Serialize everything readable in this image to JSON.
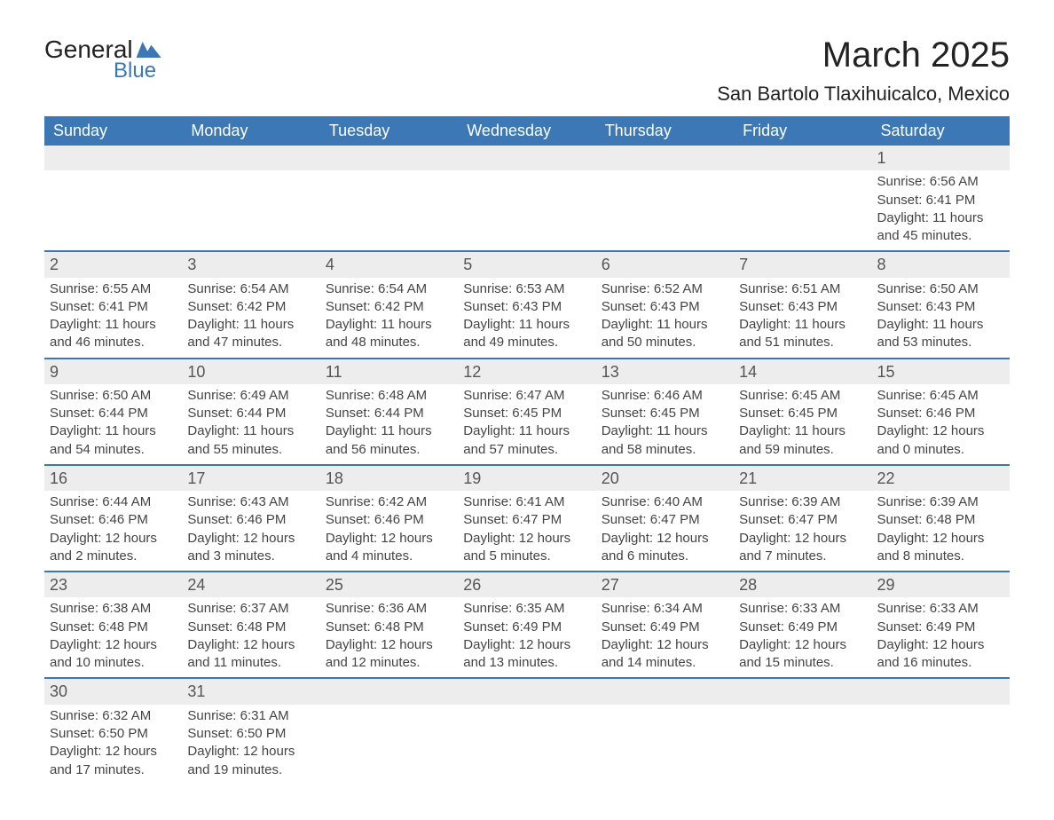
{
  "logo": {
    "line1": "General",
    "line2": "Blue"
  },
  "title": "March 2025",
  "location": "San Bartolo Tlaxihuicalco, Mexico",
  "colors": {
    "header_bg": "#3b78b5",
    "header_text": "#ffffff",
    "row_border": "#3b78b5",
    "daynum_bg": "#ededed",
    "body_text": "#444444",
    "page_bg": "#ffffff"
  },
  "typography": {
    "title_fontsize": 40,
    "location_fontsize": 22,
    "dayheader_fontsize": 18,
    "daynum_fontsize": 18,
    "cell_fontsize": 15
  },
  "day_headers": [
    "Sunday",
    "Monday",
    "Tuesday",
    "Wednesday",
    "Thursday",
    "Friday",
    "Saturday"
  ],
  "labels": {
    "sunrise": "Sunrise:",
    "sunset": "Sunset:",
    "daylight": "Daylight:"
  },
  "weeks": [
    [
      null,
      null,
      null,
      null,
      null,
      null,
      {
        "n": "1",
        "sunrise": "6:56 AM",
        "sunset": "6:41 PM",
        "daylight": "11 hours and 45 minutes."
      }
    ],
    [
      {
        "n": "2",
        "sunrise": "6:55 AM",
        "sunset": "6:41 PM",
        "daylight": "11 hours and 46 minutes."
      },
      {
        "n": "3",
        "sunrise": "6:54 AM",
        "sunset": "6:42 PM",
        "daylight": "11 hours and 47 minutes."
      },
      {
        "n": "4",
        "sunrise": "6:54 AM",
        "sunset": "6:42 PM",
        "daylight": "11 hours and 48 minutes."
      },
      {
        "n": "5",
        "sunrise": "6:53 AM",
        "sunset": "6:43 PM",
        "daylight": "11 hours and 49 minutes."
      },
      {
        "n": "6",
        "sunrise": "6:52 AM",
        "sunset": "6:43 PM",
        "daylight": "11 hours and 50 minutes."
      },
      {
        "n": "7",
        "sunrise": "6:51 AM",
        "sunset": "6:43 PM",
        "daylight": "11 hours and 51 minutes."
      },
      {
        "n": "8",
        "sunrise": "6:50 AM",
        "sunset": "6:43 PM",
        "daylight": "11 hours and 53 minutes."
      }
    ],
    [
      {
        "n": "9",
        "sunrise": "6:50 AM",
        "sunset": "6:44 PM",
        "daylight": "11 hours and 54 minutes."
      },
      {
        "n": "10",
        "sunrise": "6:49 AM",
        "sunset": "6:44 PM",
        "daylight": "11 hours and 55 minutes."
      },
      {
        "n": "11",
        "sunrise": "6:48 AM",
        "sunset": "6:44 PM",
        "daylight": "11 hours and 56 minutes."
      },
      {
        "n": "12",
        "sunrise": "6:47 AM",
        "sunset": "6:45 PM",
        "daylight": "11 hours and 57 minutes."
      },
      {
        "n": "13",
        "sunrise": "6:46 AM",
        "sunset": "6:45 PM",
        "daylight": "11 hours and 58 minutes."
      },
      {
        "n": "14",
        "sunrise": "6:45 AM",
        "sunset": "6:45 PM",
        "daylight": "11 hours and 59 minutes."
      },
      {
        "n": "15",
        "sunrise": "6:45 AM",
        "sunset": "6:46 PM",
        "daylight": "12 hours and 0 minutes."
      }
    ],
    [
      {
        "n": "16",
        "sunrise": "6:44 AM",
        "sunset": "6:46 PM",
        "daylight": "12 hours and 2 minutes."
      },
      {
        "n": "17",
        "sunrise": "6:43 AM",
        "sunset": "6:46 PM",
        "daylight": "12 hours and 3 minutes."
      },
      {
        "n": "18",
        "sunrise": "6:42 AM",
        "sunset": "6:46 PM",
        "daylight": "12 hours and 4 minutes."
      },
      {
        "n": "19",
        "sunrise": "6:41 AM",
        "sunset": "6:47 PM",
        "daylight": "12 hours and 5 minutes."
      },
      {
        "n": "20",
        "sunrise": "6:40 AM",
        "sunset": "6:47 PM",
        "daylight": "12 hours and 6 minutes."
      },
      {
        "n": "21",
        "sunrise": "6:39 AM",
        "sunset": "6:47 PM",
        "daylight": "12 hours and 7 minutes."
      },
      {
        "n": "22",
        "sunrise": "6:39 AM",
        "sunset": "6:48 PM",
        "daylight": "12 hours and 8 minutes."
      }
    ],
    [
      {
        "n": "23",
        "sunrise": "6:38 AM",
        "sunset": "6:48 PM",
        "daylight": "12 hours and 10 minutes."
      },
      {
        "n": "24",
        "sunrise": "6:37 AM",
        "sunset": "6:48 PM",
        "daylight": "12 hours and 11 minutes."
      },
      {
        "n": "25",
        "sunrise": "6:36 AM",
        "sunset": "6:48 PM",
        "daylight": "12 hours and 12 minutes."
      },
      {
        "n": "26",
        "sunrise": "6:35 AM",
        "sunset": "6:49 PM",
        "daylight": "12 hours and 13 minutes."
      },
      {
        "n": "27",
        "sunrise": "6:34 AM",
        "sunset": "6:49 PM",
        "daylight": "12 hours and 14 minutes."
      },
      {
        "n": "28",
        "sunrise": "6:33 AM",
        "sunset": "6:49 PM",
        "daylight": "12 hours and 15 minutes."
      },
      {
        "n": "29",
        "sunrise": "6:33 AM",
        "sunset": "6:49 PM",
        "daylight": "12 hours and 16 minutes."
      }
    ],
    [
      {
        "n": "30",
        "sunrise": "6:32 AM",
        "sunset": "6:50 PM",
        "daylight": "12 hours and 17 minutes."
      },
      {
        "n": "31",
        "sunrise": "6:31 AM",
        "sunset": "6:50 PM",
        "daylight": "12 hours and 19 minutes."
      },
      null,
      null,
      null,
      null,
      null
    ]
  ]
}
